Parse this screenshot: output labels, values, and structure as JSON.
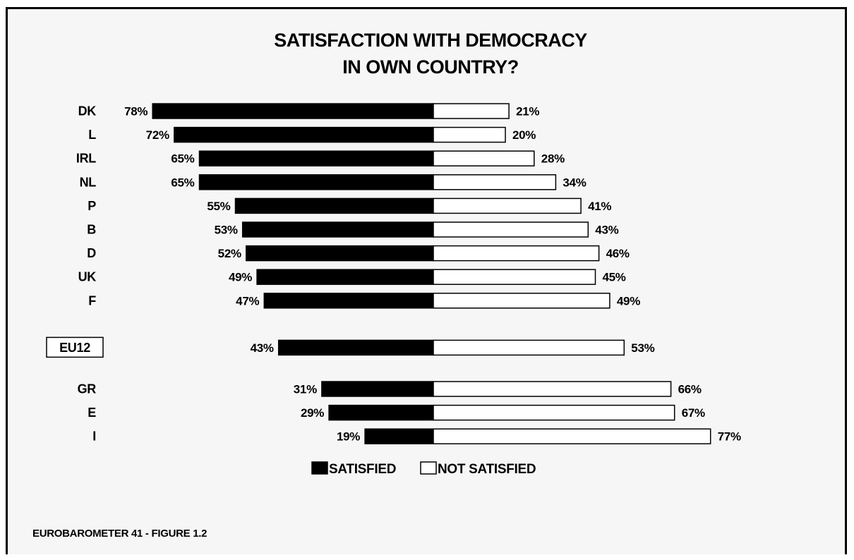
{
  "chart_data": {
    "type": "bar",
    "orientation": "diverging-horizontal",
    "title": "SATISFACTION WITH DEMOCRACY",
    "subtitle": "IN OWN COUNTRY?",
    "series": [
      {
        "name": "SATISFIED",
        "color": "#000000"
      },
      {
        "name": "NOT SATISFIED",
        "color": "#ffffff"
      }
    ],
    "rows": [
      {
        "country": "DK",
        "satisfied": 78,
        "not_satisfied": 21,
        "sat_label": "78%",
        "not_label": "21%"
      },
      {
        "country": "L",
        "satisfied": 72,
        "not_satisfied": 20,
        "sat_label": "72%",
        "not_label": "20%"
      },
      {
        "country": "IRL",
        "satisfied": 65,
        "not_satisfied": 28,
        "sat_label": "65%",
        "not_label": "28%"
      },
      {
        "country": "NL",
        "satisfied": 65,
        "not_satisfied": 34,
        "sat_label": "65%",
        "not_label": "34%"
      },
      {
        "country": "P",
        "satisfied": 55,
        "not_satisfied": 41,
        "sat_label": "55%",
        "not_label": "41%"
      },
      {
        "country": "B",
        "satisfied": 53,
        "not_satisfied": 43,
        "sat_label": "53%",
        "not_label": "43%"
      },
      {
        "country": "D",
        "satisfied": 52,
        "not_satisfied": 46,
        "sat_label": "52%",
        "not_label": "46%"
      },
      {
        "country": "UK",
        "satisfied": 49,
        "not_satisfied": 45,
        "sat_label": "49%",
        "not_label": "45%"
      },
      {
        "country": "F",
        "satisfied": 47,
        "not_satisfied": 49,
        "sat_label": "47%",
        "not_label": "49%"
      },
      {
        "country": "EU12",
        "satisfied": 43,
        "not_satisfied": 53,
        "sat_label": "43%",
        "not_label": "53%",
        "boxed": true
      },
      {
        "country": "GR",
        "satisfied": 31,
        "not_satisfied": 66,
        "sat_label": "31%",
        "not_label": "66%"
      },
      {
        "country": "E",
        "satisfied": 29,
        "not_satisfied": 67,
        "sat_label": "29%",
        "not_label": "67%"
      },
      {
        "country": "I",
        "satisfied": 19,
        "not_satisfied": 77,
        "sat_label": "19%",
        "not_label": "77%"
      }
    ],
    "legend": [
      "SATISFIED",
      "NOT SATISFIED"
    ],
    "legend_position": "bottom-center",
    "grid": false
  },
  "source": "EUROBAROMETER 41 - FIGURE 1.2"
}
